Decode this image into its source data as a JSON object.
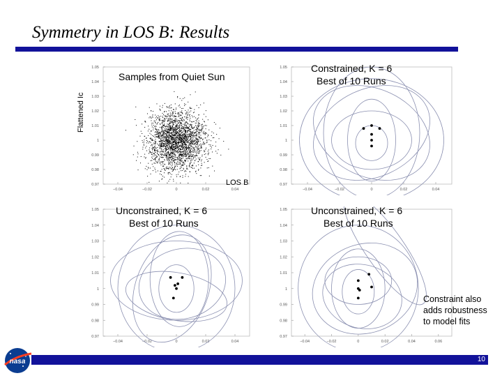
{
  "slide": {
    "title": "Symmetry in LOS B: Results",
    "page_number": "10",
    "note": "Constraint also adds robustness to model fits"
  },
  "colors": {
    "accent_bar": "#12129a",
    "ellipse": "#8a8fb0",
    "marker": "#000000"
  },
  "icons": {
    "logo": "nasa-logo-icon"
  },
  "plots": {
    "top_left": {
      "title": "Samples from Quiet Sun",
      "xlabel": "LOS B",
      "ylabel": "Flattened Ic",
      "xticks": [
        "-0.04",
        "-0.02",
        "0",
        "0.02",
        "0.04"
      ],
      "yticks": [
        "1.05",
        "1.04",
        "1.03",
        "1.02",
        "1.01",
        "1",
        "0.99",
        "0.98",
        "0.97"
      ]
    },
    "top_right": {
      "title_line1": "Constrained, K = 6",
      "title_line2": "Best of 10 Runs",
      "xticks": [
        "-0.04",
        "-0.02",
        "0",
        "0.02",
        "0.04"
      ],
      "yticks": [
        "1.05",
        "1.04",
        "1.03",
        "1.02",
        "1.01",
        "1",
        "0.99",
        "0.98",
        "0.97"
      ]
    },
    "bottom_left": {
      "title_line1": "Unconstrained, K = 6",
      "title_line2": "Best of 10 Runs",
      "xticks": [
        "-0.04",
        "-0.02",
        "0",
        "0.02",
        "0.04"
      ],
      "yticks": [
        "1.05",
        "1.04",
        "1.03",
        "1.02",
        "1.01",
        "1",
        "0.99",
        "0.98",
        "0.97"
      ]
    },
    "bottom_right": {
      "title_line1": "Unconstrained, K = 6",
      "title_line2": "Best of 10 Runs",
      "xticks": [
        "-0.04",
        "-0.02",
        "0",
        "0.02",
        "0.04",
        "0.06"
      ],
      "yticks": [
        "1.05",
        "1.04",
        "1.03",
        "1.02",
        "1.01",
        "1",
        "0.99",
        "0.98",
        "0.97"
      ]
    }
  },
  "chart_data": [
    {
      "type": "scatter",
      "title": "Samples from Quiet Sun",
      "xlabel": "LOS B",
      "ylabel": "Flattened Ic",
      "xlim": [
        -0.05,
        0.05
      ],
      "ylim": [
        0.97,
        1.05
      ],
      "grid": false,
      "point_cloud": {
        "center": [
          0.0,
          1.0
        ],
        "std": [
          0.01,
          0.01
        ],
        "count_approx": 2500
      }
    },
    {
      "type": "scatter",
      "title": "Constrained, K = 6 Best of 10 Runs",
      "xlim": [
        -0.05,
        0.05
      ],
      "ylim": [
        0.97,
        1.05
      ],
      "grid": false,
      "component_means": [
        {
          "x": -0.005,
          "y": 1.008
        },
        {
          "x": 0.0,
          "y": 1.01
        },
        {
          "x": 0.005,
          "y": 1.008
        },
        {
          "x": 0.0,
          "y": 1.0
        },
        {
          "x": 0.0,
          "y": 0.996
        },
        {
          "x": 0.0,
          "y": 1.004
        }
      ]
    },
    {
      "type": "scatter",
      "title": "Unconstrained, K = 6 Best of 10 Runs",
      "xlim": [
        -0.05,
        0.05
      ],
      "ylim": [
        0.97,
        1.05
      ],
      "grid": false,
      "component_means": [
        {
          "x": -0.004,
          "y": 1.007
        },
        {
          "x": 0.004,
          "y": 1.007
        },
        {
          "x": -0.001,
          "y": 1.002
        },
        {
          "x": 0.001,
          "y": 1.003
        },
        {
          "x": -0.002,
          "y": 0.994
        },
        {
          "x": 0.0,
          "y": 1.0
        }
      ]
    },
    {
      "type": "scatter",
      "title": "Unconstrained, K = 6 Best of 10 Runs",
      "xlim": [
        -0.05,
        0.07
      ],
      "ylim": [
        0.97,
        1.05
      ],
      "grid": false,
      "component_means": [
        {
          "x": 0.008,
          "y": 1.009
        },
        {
          "x": 0.0,
          "y": 1.005
        },
        {
          "x": 0.01,
          "y": 1.001
        },
        {
          "x": 0.0,
          "y": 1.0
        },
        {
          "x": 0.001,
          "y": 0.999
        },
        {
          "x": 0.0,
          "y": 0.994
        }
      ]
    }
  ]
}
